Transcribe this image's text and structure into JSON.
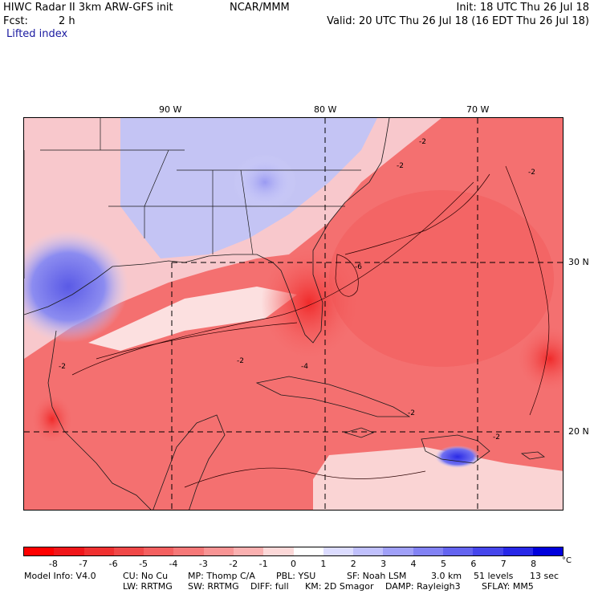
{
  "header": {
    "title": "HIWC Radar II 3km ARW-GFS init",
    "org": "NCAR/MMM",
    "init": "Init: 18 UTC Thu 26 Jul 18",
    "fcst_label": "Fcst:",
    "fcst_value": "2 h",
    "valid": "Valid: 20 UTC Thu 26 Jul 18 (16 EDT Thu 26 Jul 18)",
    "field": "Lifted index"
  },
  "map": {
    "lon_labels": [
      "90 W",
      "80 W",
      "70 W"
    ],
    "lat_labels": [
      "30 N",
      "20 N"
    ],
    "contour_labels": [
      "-2",
      "-2",
      "-2",
      "-2",
      "-4",
      "-6",
      "-2",
      "-2",
      "-2"
    ]
  },
  "colorbar": {
    "labels": [
      "-8",
      "-7",
      "-6",
      "-5",
      "-4",
      "-3",
      "-2",
      "-1",
      "0",
      "1",
      "2",
      "3",
      "4",
      "5",
      "6",
      "7",
      "8"
    ],
    "unit": "°C",
    "colors": [
      "#ff0000",
      "#f0161a",
      "#f03030",
      "#f04848",
      "#f46060",
      "#f67878",
      "#f89494",
      "#fab0b0",
      "#fcd8d8",
      "#ffffff",
      "#dcdcff",
      "#c0c0fc",
      "#a0a0f8",
      "#8282f4",
      "#6464f0",
      "#4646ec",
      "#2828e8",
      "#0000dc"
    ]
  },
  "footer": {
    "line1": [
      "Model Info: V4.0",
      "CU: No Cu",
      "MP: Thomp C/A",
      "PBL: YSU",
      "SF: Noah LSM",
      "3.0 km",
      "51 levels",
      "13 sec"
    ],
    "line2": [
      "LW: RRTMG",
      "SW: RRTMG",
      "DIFF: full",
      "KM: 2D Smagor",
      "DAMP: Rayleigh3",
      "SFLAY: MM5"
    ]
  }
}
